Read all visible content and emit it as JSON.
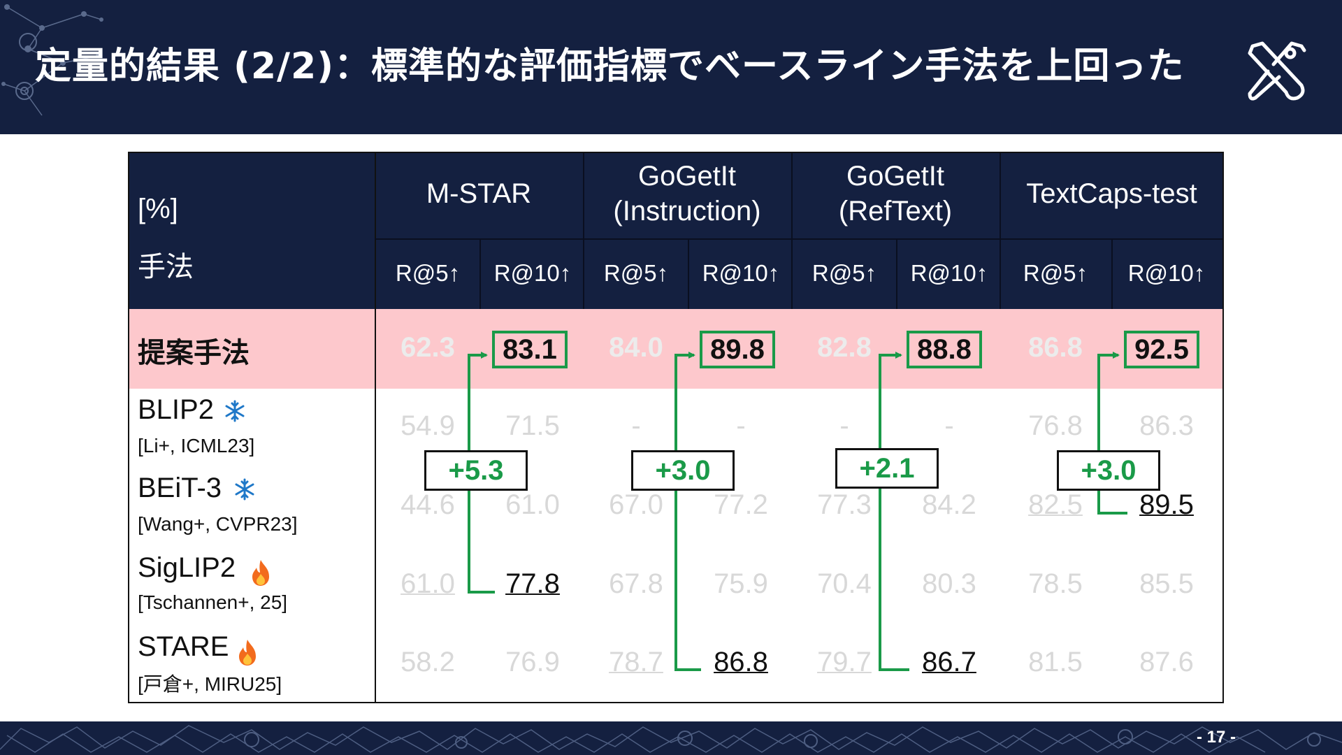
{
  "header": {
    "title": "定量的結果 (2/2)：標準的な評価指標でベースライン手法を上回った"
  },
  "footer": {
    "page_number": "- 17 -"
  },
  "table": {
    "corner_unit": "[%]",
    "corner_method": "手法",
    "datasets": [
      {
        "line1": "M-STAR",
        "line2": ""
      },
      {
        "line1": "GoGetIt",
        "line2": "(Instruction)"
      },
      {
        "line1": "GoGetIt",
        "line2": "(RefText)"
      },
      {
        "line1": "TextCaps-test",
        "line2": ""
      }
    ],
    "metrics": [
      "R@5↑",
      "R@10↑",
      "R@5↑",
      "R@10↑",
      "R@5↑",
      "R@10↑",
      "R@5↑",
      "R@10↑"
    ],
    "proposed": {
      "name": "提案手法",
      "values": [
        "62.3",
        "83.1",
        "84.0",
        "89.8",
        "82.8",
        "88.8",
        "86.8",
        "92.5"
      ]
    },
    "baselines": [
      {
        "name": "BLIP2",
        "ref": "[Li+, ICML23]",
        "icon": "snowflake-icon",
        "values": [
          "54.9",
          "71.5",
          "-",
          "-",
          "-",
          "-",
          "76.8",
          "86.3"
        ]
      },
      {
        "name": "BEiT-3",
        "ref": "[Wang+, CVPR23]",
        "icon": "snowflake-icon",
        "values": [
          "44.6",
          "61.0",
          "67.0",
          "77.2",
          "77.3",
          "84.2",
          "82.5",
          "89.5"
        ]
      },
      {
        "name": "SigLIP2",
        "ref": "[Tschannen+, 25]",
        "icon": "fire-icon",
        "values": [
          "61.0",
          "77.8",
          "67.8",
          "75.9",
          "70.4",
          "80.3",
          "78.5",
          "85.5"
        ]
      },
      {
        "name": "STARE",
        "ref": "[戸倉+, MIRU25]",
        "icon": "fire-icon",
        "values": [
          "58.2",
          "76.9",
          "78.7",
          "86.8",
          "79.7",
          "86.7",
          "81.5",
          "87.6"
        ]
      }
    ],
    "gains": [
      "+5.3",
      "+3.0",
      "+2.1",
      "+3.0"
    ]
  },
  "colors": {
    "navy": "#142040",
    "pink_row": "#fdc8cc",
    "accent_green": "#1a9a48",
    "snowflake_blue": "#1f78c8",
    "fire_orange": "#f26b1d"
  }
}
